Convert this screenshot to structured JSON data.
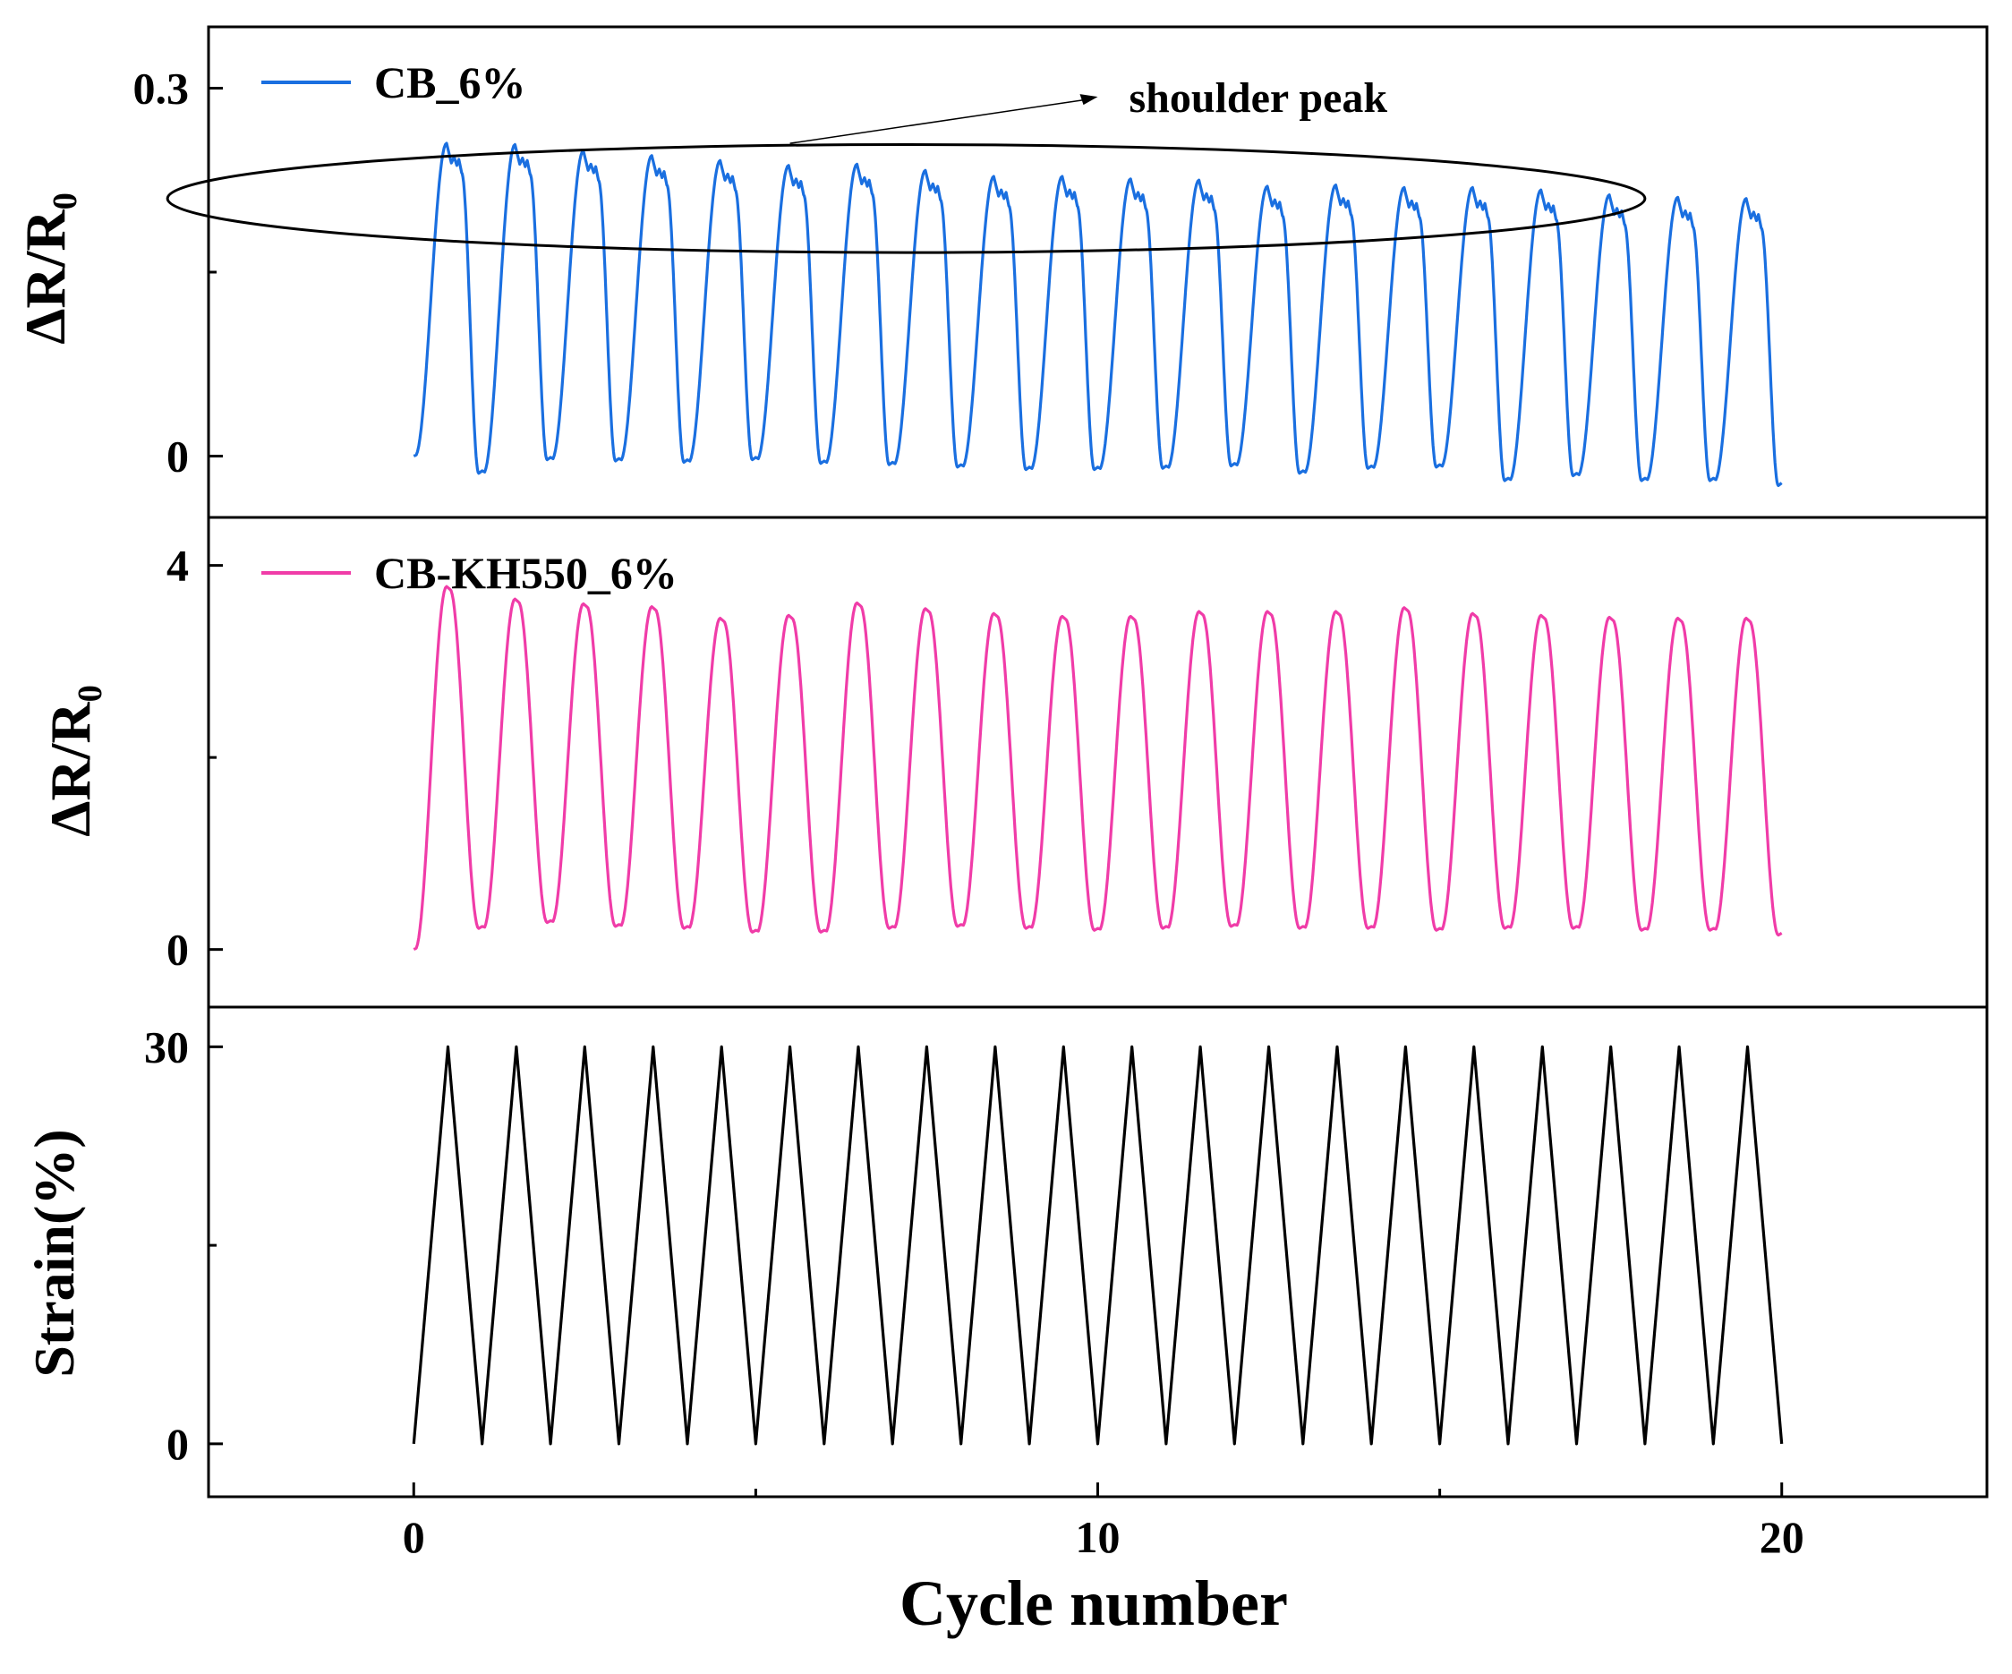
{
  "chart_data": {
    "type": "line",
    "layout": "stacked-panels",
    "shared_x_axis": {
      "label": "Cycle number",
      "range": [
        -3,
        23
      ],
      "major_ticks": [
        0,
        10,
        20
      ],
      "minor_ticks": [
        5,
        15
      ],
      "tick_labels": [
        "0",
        "10",
        "20"
      ]
    },
    "panels": [
      {
        "ylabel": "ΔR/R₀",
        "ylim": [
          -0.05,
          0.35
        ],
        "major_ticks": [
          0,
          0.3
        ],
        "tick_labels": [
          "0",
          "0.3"
        ],
        "minor_ticks": [
          0.15
        ],
        "series": [
          {
            "name": "CB_6%",
            "color": "#1a6fe0",
            "cycles": 20,
            "start_value": 0.0,
            "peak_values": [
              0.255,
              0.254,
              0.249,
              0.245,
              0.241,
              0.237,
              0.238,
              0.233,
              0.228,
              0.228,
              0.226,
              0.225,
              0.22,
              0.221,
              0.219,
              0.219,
              0.217,
              0.213,
              0.211,
              0.21
            ],
            "valley_values": [
              -0.014,
              -0.003,
              -0.004,
              -0.005,
              -0.003,
              -0.006,
              -0.007,
              -0.009,
              -0.011,
              -0.011,
              -0.01,
              -0.008,
              -0.014,
              -0.01,
              -0.009,
              -0.02,
              -0.016,
              -0.02,
              -0.02,
              -0.024
            ]
          }
        ],
        "annotation": {
          "text": "shoulder peak",
          "shape": "ellipse around shoulder peaks",
          "center": [
            7.2,
            0.21
          ],
          "semi_axes": [
            10.8,
            0.044
          ],
          "arrow_from": [
            5.5,
            0.255
          ],
          "arrow_to": [
            10.0,
            0.293
          ]
        }
      },
      {
        "ylabel": "ΔR/R₀",
        "ylim": [
          -0.6,
          4.5
        ],
        "major_ticks": [
          0,
          4
        ],
        "tick_labels": [
          "0",
          "4"
        ],
        "minor_ticks": [
          2
        ],
        "series": [
          {
            "name": "CB-KH550_6%",
            "color": "#f03ca8",
            "cycles": 20,
            "start_value": 0.0,
            "peak_values": [
              3.78,
              3.65,
              3.6,
              3.57,
              3.45,
              3.48,
              3.61,
              3.55,
              3.5,
              3.47,
              3.47,
              3.52,
              3.52,
              3.52,
              3.56,
              3.5,
              3.48,
              3.46,
              3.45,
              3.45
            ],
            "valley_values": [
              0.22,
              0.28,
              0.24,
              0.22,
              0.18,
              0.18,
              0.22,
              0.24,
              0.22,
              0.2,
              0.22,
              0.24,
              0.22,
              0.22,
              0.2,
              0.22,
              0.22,
              0.2,
              0.2,
              0.15
            ]
          }
        ]
      },
      {
        "ylabel": "Strain(%)",
        "ylim": [
          -4,
          33
        ],
        "major_ticks": [
          0,
          30
        ],
        "tick_labels": [
          "0",
          "30"
        ],
        "minor_ticks": [
          15
        ],
        "series": [
          {
            "name": "Strain",
            "color": "#000000",
            "shape": "triangle",
            "cycles": 20,
            "peak": 30,
            "valley": 0
          }
        ]
      }
    ]
  }
}
